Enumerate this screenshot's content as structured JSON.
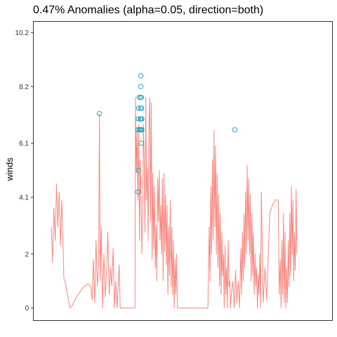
{
  "chart_data": {
    "type": "line",
    "title": "0.47% Anomalies (alpha=0.05, direction=both)",
    "xlabel": "",
    "ylabel": "winds",
    "ylim": [
      -0.45,
      10.6
    ],
    "y_ticks": [
      0,
      2,
      4.1,
      6.1,
      8.2,
      10.2
    ],
    "y_tick_labels": [
      "0",
      "2",
      "4.1",
      "6.1",
      "8.2",
      "10.2"
    ],
    "xlim": [
      0,
      1000
    ],
    "grid": false,
    "legend": "none",
    "series": [
      {
        "values": [
          [
            0,
            3.0
          ],
          [
            5,
            1.7
          ],
          [
            10,
            3.7
          ],
          [
            15,
            2.5
          ],
          [
            20,
            4.6
          ],
          [
            25,
            3.0
          ],
          [
            30,
            4.3
          ],
          [
            35,
            2.3
          ],
          [
            40,
            4.0
          ],
          [
            45,
            2.2
          ],
          [
            48,
            1.1
          ],
          [
            52,
            1.0
          ],
          [
            60,
            0.6
          ],
          [
            70,
            0.0
          ],
          [
            80,
            0.1
          ],
          [
            95,
            0.4
          ],
          [
            110,
            0.6
          ],
          [
            125,
            0.8
          ],
          [
            140,
            0.9
          ],
          [
            150,
            0.8
          ],
          [
            155,
            0.3
          ],
          [
            160,
            1.8
          ],
          [
            165,
            0.2
          ],
          [
            170,
            2.5
          ],
          [
            175,
            0.8
          ],
          [
            180,
            1.6
          ],
          [
            183,
            7.2
          ],
          [
            186,
            1.0
          ],
          [
            190,
            3.0
          ],
          [
            195,
            0.0
          ],
          [
            200,
            2.0
          ],
          [
            205,
            0.4
          ],
          [
            210,
            1.3
          ],
          [
            215,
            2.8
          ],
          [
            220,
            0.5
          ],
          [
            225,
            1.5
          ],
          [
            230,
            0.8
          ],
          [
            235,
            2.2
          ],
          [
            240,
            0.0
          ],
          [
            245,
            1.0
          ],
          [
            250,
            0.0
          ],
          [
            258,
            1.6
          ],
          [
            262,
            0.0
          ],
          [
            270,
            0.0
          ],
          [
            280,
            0.0
          ],
          [
            290,
            0.0
          ],
          [
            300,
            0.0
          ],
          [
            310,
            0.0
          ],
          [
            318,
            0.0
          ],
          [
            320,
            7.8
          ],
          [
            323,
            5.0
          ],
          [
            326,
            6.5
          ],
          [
            329,
            4.0
          ],
          [
            332,
            6.8
          ],
          [
            335,
            2.5
          ],
          [
            338,
            5.5
          ],
          [
            341,
            4.2
          ],
          [
            344,
            2.0
          ],
          [
            347,
            3.5
          ],
          [
            350,
            6.8
          ],
          [
            353,
            5.4
          ],
          [
            356,
            2.8
          ],
          [
            359,
            7.8
          ],
          [
            362,
            4.0
          ],
          [
            365,
            5.2
          ],
          [
            368,
            2.5
          ],
          [
            371,
            6.6
          ],
          [
            374,
            7.8
          ],
          [
            377,
            3.2
          ],
          [
            380,
            7.6
          ],
          [
            383,
            1.8
          ],
          [
            386,
            5.0
          ],
          [
            389,
            2.2
          ],
          [
            392,
            4.5
          ],
          [
            395,
            1.5
          ],
          [
            398,
            3.0
          ],
          [
            401,
            1.0
          ],
          [
            404,
            4.8
          ],
          [
            407,
            3.2
          ],
          [
            410,
            5.1
          ],
          [
            413,
            2.5
          ],
          [
            416,
            3.8
          ],
          [
            419,
            2.0
          ],
          [
            422,
            4.8
          ],
          [
            425,
            1.0
          ],
          [
            428,
            5.0
          ],
          [
            431,
            2.1
          ],
          [
            434,
            4.2
          ],
          [
            437,
            1.6
          ],
          [
            440,
            3.8
          ],
          [
            443,
            0.5
          ],
          [
            446,
            3.0
          ],
          [
            449,
            1.2
          ],
          [
            452,
            4.0
          ],
          [
            455,
            0.8
          ],
          [
            458,
            3.0
          ],
          [
            461,
            0.5
          ],
          [
            464,
            2.5
          ],
          [
            467,
            0.0
          ],
          [
            470,
            1.8
          ],
          [
            473,
            0.5
          ],
          [
            476,
            2.0
          ],
          [
            479,
            0.0
          ],
          [
            485,
            0.0
          ],
          [
            495,
            0.0
          ],
          [
            505,
            0.0
          ],
          [
            515,
            0.0
          ],
          [
            525,
            0.0
          ],
          [
            535,
            0.0
          ],
          [
            545,
            0.0
          ],
          [
            555,
            0.0
          ],
          [
            565,
            0.0
          ],
          [
            575,
            0.0
          ],
          [
            585,
            0.0
          ],
          [
            595,
            0.0
          ],
          [
            600,
            3.0
          ],
          [
            603,
            1.0
          ],
          [
            606,
            4.5
          ],
          [
            609,
            2.0
          ],
          [
            612,
            5.5
          ],
          [
            615,
            2.5
          ],
          [
            618,
            6.6
          ],
          [
            621,
            3.0
          ],
          [
            624,
            6.0
          ],
          [
            627,
            2.0
          ],
          [
            630,
            5.0
          ],
          [
            633,
            1.5
          ],
          [
            636,
            4.2
          ],
          [
            639,
            0.8
          ],
          [
            642,
            3.5
          ],
          [
            645,
            0.5
          ],
          [
            648,
            2.8
          ],
          [
            651,
            1.2
          ],
          [
            654,
            2.0
          ],
          [
            657,
            0.0
          ],
          [
            660,
            2.3
          ],
          [
            663,
            0.5
          ],
          [
            666,
            1.5
          ],
          [
            669,
            0.0
          ],
          [
            672,
            2.5
          ],
          [
            675,
            0.8
          ],
          [
            678,
            1.0
          ],
          [
            681,
            0.0
          ],
          [
            684,
            0.5
          ],
          [
            690,
            1.0
          ],
          [
            695,
            0.0
          ],
          [
            700,
            1.4
          ],
          [
            705,
            0.2
          ],
          [
            710,
            1.0
          ],
          [
            715,
            0.0
          ],
          [
            720,
            2.2
          ],
          [
            723,
            0.5
          ],
          [
            726,
            2.8
          ],
          [
            729,
            1.0
          ],
          [
            732,
            3.5
          ],
          [
            735,
            1.5
          ],
          [
            738,
            4.3
          ],
          [
            741,
            2.0
          ],
          [
            744,
            5.3
          ],
          [
            747,
            2.5
          ],
          [
            750,
            4.8
          ],
          [
            753,
            2.0
          ],
          [
            756,
            4.2
          ],
          [
            759,
            1.0
          ],
          [
            762,
            3.5
          ],
          [
            765,
            1.2
          ],
          [
            768,
            2.8
          ],
          [
            771,
            0.5
          ],
          [
            774,
            2.0
          ],
          [
            777,
            0.8
          ],
          [
            780,
            1.5
          ],
          [
            783,
            0.0
          ],
          [
            786,
            1.2
          ],
          [
            789,
            0.5
          ],
          [
            792,
            2.0
          ],
          [
            795,
            0.0
          ],
          [
            798,
            4.3
          ],
          [
            805,
            0.2
          ],
          [
            812,
            1.5
          ],
          [
            818,
            0.3
          ],
          [
            830,
            3.5
          ],
          [
            840,
            3.8
          ],
          [
            850,
            4.0
          ],
          [
            862,
            4.0
          ],
          [
            866,
            0.5
          ],
          [
            870,
            1.8
          ],
          [
            873,
            0.0
          ],
          [
            876,
            2.5
          ],
          [
            879,
            0.5
          ],
          [
            882,
            3.5
          ],
          [
            885,
            0.2
          ],
          [
            888,
            2.8
          ],
          [
            891,
            0.0
          ],
          [
            894,
            1.5
          ],
          [
            897,
            0.2
          ],
          [
            900,
            2.5
          ],
          [
            903,
            0.8
          ],
          [
            906,
            3.5
          ],
          [
            909,
            1.2
          ],
          [
            912,
            4.5
          ],
          [
            915,
            2.0
          ],
          [
            918,
            4.0
          ],
          [
            921,
            1.0
          ],
          [
            924,
            2.8
          ],
          [
            927,
            1.4
          ],
          [
            930,
            4.4
          ],
          [
            933,
            2.0
          ]
        ]
      }
    ],
    "anomalies": [
      [
        183,
        7.2
      ],
      [
        330,
        4.3
      ],
      [
        332,
        5.1
      ],
      [
        329,
        6.6
      ],
      [
        331,
        7.0
      ],
      [
        332,
        7.4
      ],
      [
        334,
        6.6
      ],
      [
        334,
        7.8
      ],
      [
        338,
        6.6
      ],
      [
        338,
        7.0
      ],
      [
        340,
        7.4
      ],
      [
        340,
        7.8
      ],
      [
        340,
        8.6
      ],
      [
        340,
        8.2
      ],
      [
        341,
        7.0
      ],
      [
        341,
        6.6
      ],
      [
        342,
        6.1
      ],
      [
        342,
        7.8
      ],
      [
        343,
        7.4
      ],
      [
        344,
        6.6
      ],
      [
        344,
        7.0
      ],
      [
        697,
        6.6
      ]
    ],
    "colors": {
      "line": "#f8877f",
      "anomaly": "#22a7c0"
    }
  }
}
